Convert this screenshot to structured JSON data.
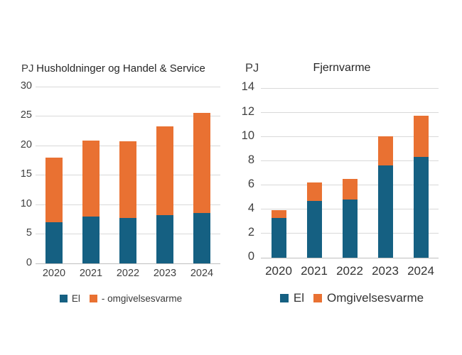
{
  "page": {
    "background": "#ffffff"
  },
  "colors": {
    "el": "#156082",
    "omgivelsesvarme": "#e97132",
    "gridline": "#d9d9d9",
    "zero_line": "#bfbfbf",
    "tick_text": "#404040",
    "title_text": "#262626"
  },
  "chart_data": [
    {
      "type": "bar",
      "stacked": true,
      "title": "Husholdninger og Handel & Service",
      "unit": "PJ",
      "categories": [
        "2020",
        "2021",
        "2022",
        "2023",
        "2024"
      ],
      "series": [
        {
          "name": "El",
          "color_key": "el",
          "values": [
            7.0,
            7.9,
            7.7,
            8.2,
            8.6
          ]
        },
        {
          "name": "- omgivelsesvarme",
          "color_key": "omgivelsesvarme",
          "values": [
            11.0,
            12.9,
            13.0,
            15.0,
            17.0
          ]
        }
      ],
      "totals": [
        18.0,
        20.8,
        20.7,
        23.2,
        25.6
      ],
      "ylim": [
        0,
        30
      ],
      "yticks": [
        0,
        5,
        10,
        15,
        20,
        25,
        30
      ],
      "grid": true,
      "legend": [
        {
          "label": "El",
          "color_key": "el"
        },
        {
          "label": "- omgivelsesvarme",
          "color_key": "omgivelsesvarme"
        }
      ],
      "legend_position": "bottom"
    },
    {
      "type": "bar",
      "stacked": true,
      "title": "Fjernvarme",
      "unit": "PJ",
      "categories": [
        "2020",
        "2021",
        "2022",
        "2023",
        "2024"
      ],
      "series": [
        {
          "name": "El",
          "color_key": "el",
          "values": [
            3.3,
            4.7,
            4.8,
            7.6,
            8.3
          ]
        },
        {
          "name": "Omgivelsesvarme",
          "color_key": "omgivelsesvarme",
          "values": [
            0.6,
            1.5,
            1.7,
            2.4,
            3.4
          ]
        }
      ],
      "totals": [
        3.9,
        6.2,
        6.5,
        10.0,
        11.7
      ],
      "ylim": [
        0,
        14
      ],
      "yticks": [
        0,
        2,
        4,
        6,
        8,
        10,
        12,
        14
      ],
      "grid": true,
      "legend": [
        {
          "label": "El",
          "color_key": "el"
        },
        {
          "label": "Omgivelsesvarme",
          "color_key": "omgivelsesvarme"
        }
      ],
      "legend_position": "bottom"
    }
  ]
}
